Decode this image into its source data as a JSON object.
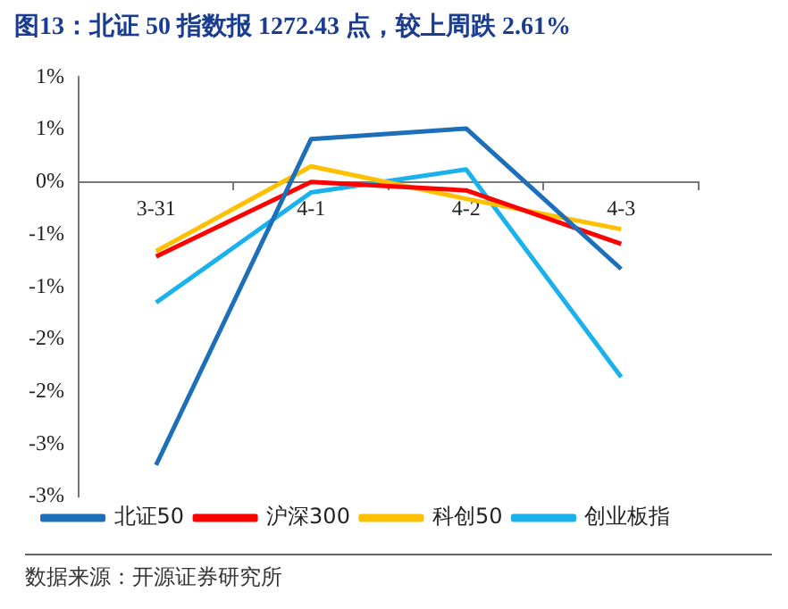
{
  "chart_data": {
    "type": "line",
    "title": "图13：北证 50 指数报 1272.43 点，较上周跌 2.61%",
    "categories": [
      "3-31",
      "4-1",
      "4-2",
      "4-3"
    ],
    "series": [
      {
        "name": "北证50",
        "color": "#1e6fba",
        "values": [
          -2.7,
          0.41,
          0.51,
          -0.83
        ]
      },
      {
        "name": "沪深300",
        "color": "#ff0000",
        "values": [
          -0.71,
          0,
          -0.08,
          -0.59
        ]
      },
      {
        "name": "科创50",
        "color": "#ffc000",
        "values": [
          -0.66,
          0.15,
          -0.16,
          -0.45
        ]
      },
      {
        "name": "创业板指",
        "color": "#19b2ec",
        "values": [
          -1.15,
          -0.1,
          0.12,
          -1.86
        ]
      }
    ],
    "ylim": [
      -3,
      1
    ],
    "yticks": [
      {
        "value": 1,
        "label": "1%"
      },
      {
        "value": 0.5,
        "label": "1%"
      },
      {
        "value": 0,
        "label": "0%"
      },
      {
        "value": -0.5,
        "label": "-1%"
      },
      {
        "value": -1,
        "label": "-1%"
      },
      {
        "value": -1.5,
        "label": "-2%"
      },
      {
        "value": -2,
        "label": "-2%"
      },
      {
        "value": -2.5,
        "label": "-3%"
      },
      {
        "value": -3,
        "label": "-3%"
      }
    ],
    "grid": false,
    "legend": "bottom",
    "marker": "none",
    "line_style": "solid",
    "annotations": [
      "数据来源：开源证券研究所"
    ]
  }
}
